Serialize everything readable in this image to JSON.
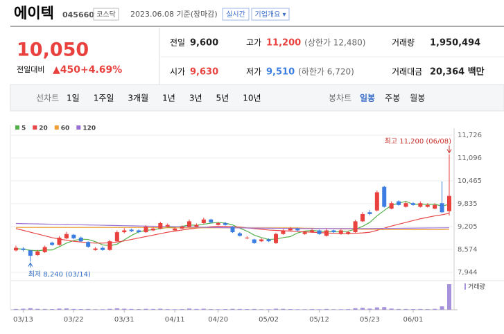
{
  "header": {
    "name": "에이텍",
    "code": "045660",
    "market": "코스닥",
    "date": "2023.06.08 기준(장마감)",
    "realtime": "실시간",
    "overview": "기업개요 ▾"
  },
  "price": {
    "current": "10,050",
    "change_label": "전일대비",
    "change": "▲450",
    "rate": "+4.69%"
  },
  "info": [
    [
      "전일",
      "9,600"
    ],
    [
      "고가",
      "11,200",
      "(상한가 12,480)"
    ],
    [
      "거래량",
      "1,950,494"
    ],
    [
      "시가",
      "9,630"
    ],
    [
      "저가",
      "9,510",
      "(하한가 6,720)"
    ],
    [
      "거래대금",
      "20,364 백만"
    ]
  ],
  "tabs": {
    "line_label": "선차트",
    "line": [
      "1일",
      "1주일",
      "3개월",
      "1년",
      "3년",
      "5년",
      "10년"
    ],
    "candle_label": "봉차트",
    "candle": [
      "일봉",
      "주봉",
      "월봉"
    ]
  },
  "chart_data": {
    "type": "candlestick",
    "categories": [
      null,
      "03/13",
      null,
      null,
      null,
      null,
      null,
      null,
      "03/22",
      null,
      null,
      null,
      null,
      null,
      null,
      "03/31",
      null,
      null,
      null,
      null,
      null,
      null,
      "04/11",
      null,
      null,
      null,
      null,
      null,
      "04/20",
      null,
      null,
      null,
      null,
      null,
      null,
      "05/02",
      null,
      null,
      null,
      null,
      null,
      null,
      "05/12",
      null,
      null,
      null,
      null,
      null,
      null,
      "05/23",
      null,
      null,
      null,
      null,
      null,
      "06/01",
      null,
      null,
      null,
      null,
      null
    ],
    "open": [
      8550,
      8600,
      8550,
      8420,
      8500,
      8760,
      8700,
      8880,
      8980,
      8900,
      8780,
      8560,
      8620,
      8560,
      8800,
      9050,
      9120,
      9100,
      9050,
      9100,
      9150,
      9200,
      9100,
      9150,
      9200,
      9200,
      9300,
      9400,
      9250,
      9300,
      9200,
      9020,
      8880,
      8850,
      8800,
      8850,
      8750,
      9000,
      9100,
      9150,
      9000,
      9050,
      9100,
      8950,
      9100,
      9000,
      9000,
      9050,
      9350,
      9600,
      9650,
      10300,
      9700,
      9900,
      9750,
      9850,
      9750,
      9750,
      9700,
      9850,
      9630
    ],
    "high": [
      8680,
      8640,
      8560,
      8560,
      8680,
      8790,
      8940,
      9060,
      9000,
      8930,
      8800,
      8640,
      8660,
      8840,
      9100,
      9160,
      9150,
      9130,
      9240,
      9190,
      9340,
      9290,
      9190,
      9240,
      9400,
      9290,
      9450,
      9420,
      9340,
      9330,
      9220,
      9050,
      8940,
      8870,
      8880,
      8880,
      9040,
      9140,
      9190,
      9170,
      9080,
      9140,
      9120,
      9140,
      9120,
      9130,
      9090,
      9390,
      9600,
      9660,
      10200,
      10330,
      9900,
      9930,
      9900,
      9880,
      9900,
      9850,
      9850,
      10450,
      11200
    ],
    "low": [
      8520,
      8520,
      8240,
      8400,
      8480,
      8680,
      8680,
      8860,
      8860,
      8780,
      8620,
      8540,
      8540,
      8540,
      8780,
      9020,
      9050,
      9020,
      9030,
      9080,
      9130,
      9180,
      9080,
      9130,
      9180,
      9180,
      9280,
      9300,
      9230,
      9230,
      9030,
      8930,
      8860,
      8730,
      8780,
      8780,
      8730,
      8980,
      9080,
      9080,
      8980,
      9030,
      8980,
      8930,
      9030,
      8980,
      8980,
      9030,
      9330,
      9520,
      9620,
      9730,
      9680,
      9780,
      9730,
      9780,
      9730,
      9730,
      9680,
      9580,
      9510
    ],
    "close": [
      8620,
      8560,
      8400,
      8520,
      8640,
      8700,
      8900,
      9000,
      8880,
      8800,
      8650,
      8600,
      8560,
      8800,
      9050,
      9100,
      9080,
      9050,
      9200,
      9150,
      9300,
      9250,
      9150,
      9200,
      9350,
      9250,
      9400,
      9320,
      9300,
      9250,
      9050,
      8950,
      8900,
      8750,
      8850,
      8800,
      9000,
      9100,
      9150,
      9100,
      9050,
      9100,
      9000,
      9100,
      9050,
      9100,
      9050,
      9350,
      9550,
      9550,
      10150,
      9750,
      9850,
      9800,
      9850,
      9800,
      9850,
      9800,
      9800,
      9600,
      10050
    ],
    "volume": [
      60000,
      80000,
      120000,
      70000,
      60000,
      50000,
      90000,
      100000,
      60000,
      50000,
      60000,
      40000,
      40000,
      70000,
      110000,
      80000,
      60000,
      50000,
      70000,
      60000,
      80000,
      50000,
      40000,
      50000,
      90000,
      60000,
      80000,
      50000,
      40000,
      50000,
      70000,
      60000,
      50000,
      60000,
      40000,
      40000,
      80000,
      70000,
      50000,
      40000,
      40000,
      50000,
      40000,
      60000,
      40000,
      40000,
      50000,
      120000,
      150000,
      90000,
      180000,
      200000,
      90000,
      60000,
      60000,
      50000,
      60000,
      50000,
      70000,
      260000,
      1950494
    ],
    "volume_label": "거래량",
    "volume_color": "#a793db",
    "up_color": "#e8413e",
    "down_color": "#3b7de0",
    "series": [
      {
        "name": "5",
        "color": "#53b04a",
        "values": [
          8600,
          8580,
          8550,
          8540,
          8560,
          8560,
          8650,
          8750,
          8820,
          8860,
          8850,
          8790,
          8700,
          8680,
          8720,
          8840,
          8960,
          9060,
          9100,
          9120,
          9150,
          9180,
          9190,
          9210,
          9250,
          9240,
          9270,
          9300,
          9320,
          9300,
          9250,
          9160,
          9080,
          8970,
          8900,
          8850,
          8860,
          8900,
          8930,
          9030,
          9080,
          9100,
          9080,
          9070,
          9060,
          9060,
          9080,
          9130,
          9210,
          9320,
          9500,
          9650,
          9790,
          9850,
          9900,
          9820,
          9820,
          9820,
          9820,
          9770,
          9820
        ]
      },
      {
        "name": "20",
        "color": "#e84646",
        "values": [
          9150,
          9100,
          9050,
          9000,
          8950,
          8900,
          8860,
          8830,
          8800,
          8780,
          8760,
          8750,
          8750,
          8760,
          8780,
          8810,
          8850,
          8890,
          8930,
          8970,
          9010,
          9050,
          9080,
          9110,
          9140,
          9160,
          9180,
          9200,
          9210,
          9210,
          9200,
          9190,
          9170,
          9150,
          9130,
          9110,
          9100,
          9090,
          9080,
          9070,
          9060,
          9050,
          9040,
          9030,
          9020,
          9010,
          9010,
          9020,
          9030,
          9050,
          9100,
          9160,
          9220,
          9270,
          9320,
          9370,
          9420,
          9460,
          9500,
          9530,
          9570
        ]
      },
      {
        "name": "60",
        "color": "#f0a030",
        "values": [
          9180,
          9180,
          9180,
          9180,
          9180,
          9180,
          9180,
          9180,
          9180,
          9180,
          9180,
          9180,
          9180,
          9180,
          9180,
          9180,
          9180,
          9180,
          9180,
          9180,
          9170,
          9170,
          9170,
          9170,
          9170,
          9170,
          9170,
          9170,
          9170,
          9170,
          9170,
          9170,
          9170,
          9170,
          9170,
          9170,
          9170,
          9170,
          9170,
          9170,
          9160,
          9160,
          9150,
          9150,
          9150,
          9140,
          9140,
          9140,
          9130,
          9130,
          9130,
          9120,
          9120,
          9120,
          9120,
          9120,
          9120,
          9120,
          9120,
          9120,
          9130
        ]
      },
      {
        "name": "120",
        "color": "#9b6fd0",
        "values": [
          9290,
          9286,
          9282,
          9278,
          9274,
          9270,
          9266,
          9262,
          9258,
          9254,
          9250,
          9246,
          9242,
          9238,
          9234,
          9230,
          9226,
          9222,
          9218,
          9214,
          9210,
          9206,
          9202,
          9198,
          9194,
          9190,
          9186,
          9182,
          9178,
          9174,
          9170,
          9168,
          9166,
          9164,
          9162,
          9160,
          9158,
          9156,
          9154,
          9152,
          9150,
          9150,
          9150,
          9150,
          9150,
          9150,
          9150,
          9150,
          9150,
          9150,
          9152,
          9154,
          9156,
          9158,
          9160,
          9162,
          9164,
          9166,
          9168,
          9170,
          9172
        ]
      }
    ],
    "ylim": [
      7944,
      11726
    ],
    "yticks": [
      {
        "value": 11726,
        "label": "11,726"
      },
      {
        "value": 11096,
        "label": "11,096"
      },
      {
        "value": 10465,
        "label": "10,465"
      },
      {
        "value": 9835,
        "label": "9,835"
      },
      {
        "value": 9205,
        "label": "9,205"
      },
      {
        "value": 8574,
        "label": "8,574"
      },
      {
        "value": 7944,
        "label": "7,944"
      }
    ],
    "grid": true,
    "annotations": [
      "최고 11,200 (06/08)",
      "최저 8,240 (03/14)"
    ]
  }
}
